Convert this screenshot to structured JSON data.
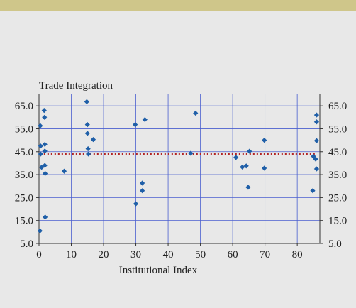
{
  "colors": {
    "background": "#e8e8e8",
    "top_band": "#cfc68a",
    "plot_background": "#e8e8e8",
    "grid": "#4a5fcf",
    "marker": "#1f5fa8",
    "mean_line": "#b22222"
  },
  "chart_data": {
    "type": "scatter",
    "title": "",
    "ylabel": "Trade Integration",
    "xlabel": "Institutional Index",
    "xlim": [
      0,
      87
    ],
    "ylim": [
      5,
      70
    ],
    "x_ticks": [
      0,
      10,
      20,
      30,
      40,
      50,
      60,
      70,
      80
    ],
    "y_ticks": [
      5.0,
      15.0,
      25.0,
      35.0,
      45.0,
      55.0,
      65.0
    ],
    "y_tick_labels": [
      "5.0",
      "15.0",
      "25.0",
      "35.0",
      "45.0",
      "55.0",
      "65.0"
    ],
    "grid": true,
    "mean_line": {
      "y": 44,
      "style": "dotted"
    },
    "marker": "diamond",
    "points": [
      [
        0.3,
        10.5
      ],
      [
        0.4,
        56.3
      ],
      [
        0.5,
        47.5
      ],
      [
        0.5,
        44.0
      ],
      [
        0.8,
        38.2
      ],
      [
        1.6,
        63.0
      ],
      [
        1.7,
        60.0
      ],
      [
        1.8,
        48.2
      ],
      [
        1.8,
        45.3
      ],
      [
        1.8,
        39.0
      ],
      [
        1.9,
        35.5
      ],
      [
        1.9,
        16.5
      ],
      [
        7.8,
        36.5
      ],
      [
        14.8,
        66.8
      ],
      [
        15.0,
        56.8
      ],
      [
        15.0,
        53.0
      ],
      [
        15.2,
        46.3
      ],
      [
        15.3,
        44.0
      ],
      [
        16.8,
        50.3
      ],
      [
        29.8,
        56.8
      ],
      [
        30.0,
        22.3
      ],
      [
        32.0,
        31.3
      ],
      [
        32.0,
        28.0
      ],
      [
        32.8,
        59.0
      ],
      [
        47.0,
        44.3
      ],
      [
        48.5,
        61.8
      ],
      [
        61.0,
        42.5
      ],
      [
        63.0,
        38.3
      ],
      [
        64.2,
        38.8
      ],
      [
        64.8,
        29.5
      ],
      [
        65.2,
        45.2
      ],
      [
        69.8,
        50.0
      ],
      [
        69.8,
        37.8
      ],
      [
        84.8,
        28.0
      ],
      [
        85.0,
        43.0
      ],
      [
        85.7,
        41.8
      ],
      [
        86.0,
        61.0
      ],
      [
        86.0,
        58.0
      ],
      [
        86.0,
        49.8
      ],
      [
        86.0,
        37.5
      ]
    ]
  }
}
